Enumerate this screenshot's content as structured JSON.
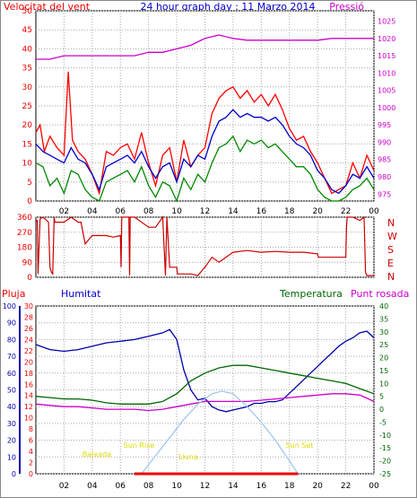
{
  "chart_data": [
    {
      "type": "line",
      "title": "24 hour graph day : 11 Marzo 2014",
      "left_axis_title": "Velocitat del vent",
      "right_axis_title": "Pressió",
      "x_ticks": [
        "02",
        "04",
        "06",
        "08",
        "10",
        "12",
        "14",
        "16",
        "18",
        "20",
        "22",
        "00"
      ],
      "left_ticks": [
        0,
        5,
        10,
        15,
        20,
        25,
        30,
        35,
        40,
        45,
        50
      ],
      "right_ticks": [
        975,
        980,
        985,
        990,
        995,
        1000,
        1005,
        1010,
        1015,
        1020,
        1025
      ],
      "ylim_left": [
        0,
        50
      ],
      "ylim_right": [
        973,
        1028
      ],
      "grid": true,
      "series": [
        {
          "color": "#ff0000",
          "axis": "left",
          "x": [
            0,
            0.3,
            0.6,
            1,
            1.5,
            2,
            2.3,
            2.6,
            3,
            3.5,
            4,
            4.5,
            5,
            5.5,
            6,
            6.5,
            7,
            7.5,
            8,
            8.5,
            9,
            9.5,
            10,
            10.5,
            11,
            11.5,
            12,
            12.5,
            13,
            13.5,
            14,
            14.5,
            15,
            15.5,
            16,
            16.5,
            17,
            17.5,
            18,
            18.5,
            19,
            19.5,
            20,
            20.5,
            21,
            21.5,
            22,
            22.5,
            23,
            23.5,
            24
          ],
          "y": [
            18,
            20,
            13,
            17,
            14,
            12,
            34,
            16,
            13,
            11,
            7,
            2,
            13,
            12,
            14,
            15,
            11,
            18,
            10,
            4,
            12,
            14,
            5,
            16,
            9,
            12,
            14,
            23,
            27,
            29,
            30,
            27,
            29,
            26,
            28,
            25,
            28,
            24,
            19,
            16,
            17,
            13,
            10,
            6,
            2,
            3,
            4,
            10,
            6,
            12,
            8
          ]
        },
        {
          "color": "#0000cc",
          "axis": "left",
          "x": [
            0,
            0.5,
            1,
            1.5,
            2,
            2.5,
            3,
            3.5,
            4,
            4.5,
            5,
            5.5,
            6,
            6.5,
            7,
            7.5,
            8,
            8.5,
            9,
            9.5,
            10,
            10.5,
            11,
            11.5,
            12,
            12.5,
            13,
            13.5,
            14,
            14.5,
            15,
            15.5,
            16,
            16.5,
            17,
            17.5,
            18,
            18.5,
            19,
            19.5,
            20,
            20.5,
            21,
            21.5,
            22,
            22.5,
            23,
            23.5,
            24
          ],
          "y": [
            15,
            13,
            12,
            11,
            10,
            14,
            11,
            10,
            7,
            3,
            9,
            10,
            11,
            12,
            10,
            13,
            9,
            6,
            9,
            10,
            5,
            11,
            9,
            12,
            11,
            17,
            21,
            22,
            24,
            22,
            23,
            22,
            22,
            21,
            22,
            20,
            17,
            15,
            14,
            12,
            8,
            6,
            3,
            2,
            4,
            7,
            6,
            9,
            6
          ]
        },
        {
          "color": "#008800",
          "axis": "left",
          "x": [
            0,
            0.5,
            1,
            1.5,
            2,
            2.5,
            3,
            3.5,
            4,
            4.5,
            5,
            5.5,
            6,
            6.5,
            7,
            7.5,
            8,
            8.5,
            9,
            9.5,
            10,
            10.5,
            11,
            11.5,
            12,
            12.5,
            13,
            13.5,
            14,
            14.5,
            15,
            15.5,
            16,
            16.5,
            17,
            17.5,
            18,
            18.5,
            19,
            19.5,
            20,
            20.5,
            21,
            21.5,
            22,
            22.5,
            23,
            23.5,
            24
          ],
          "y": [
            10,
            9,
            4,
            6,
            2,
            8,
            7,
            3,
            1,
            0,
            5,
            6,
            7,
            8,
            5,
            9,
            4,
            1,
            5,
            4,
            0,
            6,
            3,
            7,
            5,
            10,
            14,
            15,
            17,
            13,
            16,
            15,
            16,
            14,
            15,
            13,
            11,
            9,
            9,
            7,
            3,
            1,
            0,
            0,
            1,
            3,
            4,
            6,
            3
          ]
        },
        {
          "color": "#cc00cc",
          "axis": "right",
          "x": [
            0,
            1,
            2,
            3,
            4,
            5,
            6,
            7,
            8,
            9,
            10,
            11,
            12,
            13,
            14,
            15,
            16,
            17,
            18,
            19,
            20,
            21,
            22,
            23,
            24
          ],
          "y": [
            1014,
            1014,
            1015,
            1015,
            1015,
            1015,
            1015,
            1015,
            1016,
            1016,
            1017,
            1018,
            1020,
            1021,
            1020,
            1019.5,
            1019.5,
            1019.5,
            1019.5,
            1019.5,
            1019.5,
            1020,
            1020,
            1020,
            1020
          ]
        }
      ]
    },
    {
      "type": "line",
      "right_labels": [
        "N",
        "W",
        "S",
        "E",
        "N"
      ],
      "left_ticks": [
        0,
        90,
        180,
        270,
        360
      ],
      "ylim": [
        0,
        360
      ],
      "x_ticks": [
        "02",
        "04",
        "06",
        "08",
        "10",
        "12",
        "14",
        "16",
        "18",
        "20",
        "22",
        "00"
      ],
      "series": [
        {
          "color": "#cc0000",
          "x": [
            0,
            0.1,
            0.15,
            0.3,
            0.5,
            0.9,
            1,
            1.1,
            1.2,
            1.3,
            1.35,
            2,
            2.5,
            3,
            3.2,
            3.5,
            4,
            5,
            5.5,
            6,
            6.05,
            6.1,
            6.6,
            6.65,
            6.7,
            7,
            8,
            8.5,
            9,
            9.2,
            9.3,
            9.5,
            10,
            10.05,
            11,
            11.5,
            12,
            12.5,
            13,
            14,
            15,
            16,
            17,
            18,
            19,
            20,
            20.05,
            21,
            22,
            22.05,
            22.1,
            22.5,
            23,
            23.3,
            23.4,
            23.5,
            23.6,
            24
          ],
          "y": [
            330,
            340,
            20,
            350,
            360,
            330,
            60,
            30,
            20,
            360,
            330,
            330,
            360,
            330,
            330,
            200,
            250,
            250,
            240,
            250,
            60,
            360,
            360,
            10,
            360,
            360,
            300,
            300,
            360,
            10,
            360,
            60,
            60,
            20,
            20,
            10,
            60,
            120,
            90,
            150,
            160,
            150,
            155,
            150,
            150,
            140,
            120,
            120,
            120,
            300,
            360,
            360,
            340,
            360,
            30,
            10,
            10,
            10
          ]
        }
      ]
    },
    {
      "type": "line",
      "labels": {
        "rain": "Pluja",
        "humidity": "Humitat",
        "temperature": "Temperatura",
        "dewpoint": "Punt rosada"
      },
      "rain_ticks": [
        0,
        2,
        4,
        6,
        8,
        10,
        12,
        14,
        16,
        18,
        20,
        22,
        24,
        26,
        28,
        30
      ],
      "humidity_ticks": [
        0,
        10,
        20,
        30,
        40,
        50,
        60,
        70,
        80,
        90,
        100
      ],
      "temp_ticks": [
        -25,
        -20,
        -15,
        -10,
        -5,
        0,
        5,
        10,
        15,
        20,
        25,
        30,
        35,
        40
      ],
      "x_ticks": [
        "02",
        "04",
        "06",
        "08",
        "10",
        "12",
        "14",
        "16",
        "18",
        "20",
        "22",
        "00"
      ],
      "annotations": [
        "Baixada",
        "Sun Rise",
        "Lluna",
        "Sun Set"
      ],
      "series": [
        {
          "color": "#0000aa",
          "axis": "humidity",
          "x": [
            0,
            1,
            2,
            3,
            4,
            5,
            6,
            7,
            8,
            9,
            9.5,
            10,
            10.5,
            11,
            11.5,
            12,
            12.5,
            13,
            13.5,
            14,
            14.5,
            15,
            15.5,
            16,
            16.5,
            17,
            17.5,
            18,
            18.5,
            19,
            19.5,
            20,
            20.5,
            21,
            21.5,
            22,
            22.5,
            23,
            23.5,
            24
          ],
          "y": [
            77,
            74,
            73,
            74,
            76,
            78,
            79,
            80,
            82,
            84,
            86,
            80,
            62,
            50,
            44,
            45,
            40,
            38,
            37,
            38,
            39,
            40,
            42,
            42,
            43,
            43,
            44,
            48,
            52,
            56,
            60,
            64,
            68,
            72,
            76,
            79,
            81,
            84,
            85,
            81
          ]
        },
        {
          "color": "#006600",
          "axis": "temp",
          "x": [
            0,
            1,
            2,
            3,
            4,
            5,
            6,
            7,
            8,
            9,
            10,
            11,
            12,
            13,
            14,
            15,
            16,
            17,
            18,
            19,
            20,
            21,
            22,
            23,
            24
          ],
          "y": [
            5,
            4.5,
            4,
            4,
            3.5,
            2.5,
            2,
            2,
            2,
            3,
            6,
            11,
            14,
            16,
            17,
            17,
            16,
            15,
            14,
            13,
            12,
            11,
            10,
            8,
            6
          ]
        },
        {
          "color": "#cc00cc",
          "axis": "temp",
          "x": [
            0,
            1,
            2,
            3,
            4,
            5,
            6,
            7,
            8,
            9,
            10,
            11,
            12,
            13,
            14,
            15,
            16,
            17,
            18,
            19,
            20,
            21,
            22,
            23,
            24
          ],
          "y": [
            2,
            1.5,
            1,
            1,
            0.5,
            0,
            0,
            0,
            -0.5,
            0,
            1,
            2,
            3,
            3,
            3,
            3,
            3.5,
            4,
            4.5,
            5,
            5.5,
            6,
            6,
            5.5,
            3
          ]
        },
        {
          "color": "#9fc7ee",
          "axis": "temp",
          "x": [
            7.5,
            8.5,
            9.5,
            10.5,
            11.5,
            12.5,
            13.2,
            14,
            15,
            16,
            17,
            18,
            18.6
          ],
          "y": [
            -25,
            -18,
            -11,
            -4,
            2,
            6,
            7,
            6,
            1,
            -5,
            -12,
            -20,
            -25
          ]
        },
        {
          "color": "#ee0000",
          "axis": "rain",
          "x": [
            7,
            18.6
          ],
          "y": [
            0,
            0
          ]
        }
      ]
    }
  ]
}
